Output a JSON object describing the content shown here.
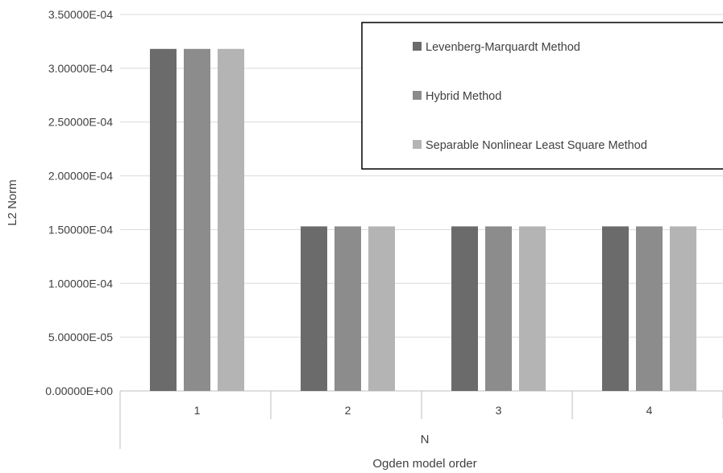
{
  "chart_data": {
    "type": "bar",
    "categories": [
      "1",
      "2",
      "3",
      "4"
    ],
    "series": [
      {
        "name": "Levenberg-Marquardt Method",
        "color": "#6b6b6b",
        "values": [
          0.000318,
          0.000153,
          0.000153,
          0.000153
        ]
      },
      {
        "name": "Hybrid Method",
        "color": "#8c8c8c",
        "values": [
          0.000318,
          0.000153,
          0.000153,
          0.000153
        ]
      },
      {
        "name": "Separable Nonlinear Least Square Method",
        "color": "#b4b4b4",
        "values": [
          0.000318,
          0.000153,
          0.000153,
          0.000153
        ]
      }
    ],
    "ylim": [
      0,
      0.00035
    ],
    "yticks": [
      0,
      5e-05,
      0.0001,
      0.00015,
      0.0002,
      0.00025,
      0.0003,
      0.00035
    ],
    "ytick_labels": [
      "0.00000E+00",
      "5.00000E-05",
      "1.00000E-04",
      "1.50000E-04",
      "2.00000E-04",
      "2.50000E-04",
      "3.00000E-04",
      "3.50000E-04"
    ],
    "ylabel": "L2 Norm",
    "xlabel_line1": "N",
    "xlabel_line2": "Ogden model order",
    "grid": true,
    "legend_position": "top-right"
  }
}
